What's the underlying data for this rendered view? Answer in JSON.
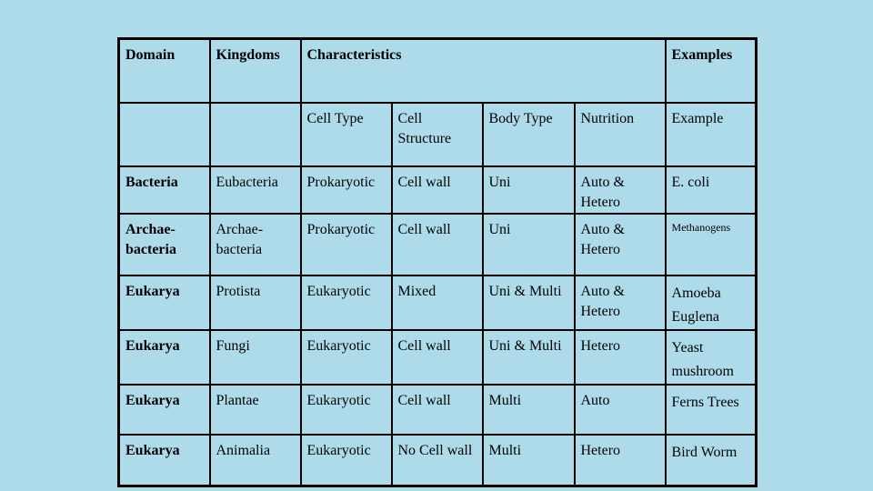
{
  "table": {
    "header1": {
      "domain": "Domain",
      "kingdoms": "Kingdoms",
      "characteristics": "Characteristics",
      "examples": "Examples"
    },
    "header2": {
      "cell_type": "Cell Type",
      "cell_structure": "Cell Structure",
      "body_type": "Body Type",
      "nutrition": "Nutrition",
      "example": "Example"
    },
    "rows": [
      {
        "domain": "Bacteria",
        "kingdom": "Eubacteria",
        "cell_type": "Prokaryotic",
        "cell_structure": "Cell wall",
        "body_type": "Uni",
        "nutrition": "Auto & Hetero",
        "example": "E. coli"
      },
      {
        "domain": "Archae-bacteria",
        "kingdom": "Archae-bacteria",
        "cell_type": "Prokaryotic",
        "cell_structure": "Cell wall",
        "body_type": "Uni",
        "nutrition": "Auto & Hetero",
        "example": "Methanogens"
      },
      {
        "domain": "Eukarya",
        "kingdom": "Protista",
        "cell_type": "Eukaryotic",
        "cell_structure": "Mixed",
        "body_type": "Uni & Multi",
        "nutrition": "Auto & Hetero",
        "example": "Amoeba Euglena"
      },
      {
        "domain": "Eukarya",
        "kingdom": "Fungi",
        "cell_type": "Eukaryotic",
        "cell_structure": "Cell wall",
        "body_type": "Uni & Multi",
        "nutrition": "Hetero",
        "example": "Yeast mushroom"
      },
      {
        "domain": "Eukarya",
        "kingdom": "Plantae",
        "cell_type": "Eukaryotic",
        "cell_structure": "Cell wall",
        "body_type": "Multi",
        "nutrition": "Auto",
        "example": "Ferns Trees"
      },
      {
        "domain": "Eukarya",
        "kingdom": "Animalia",
        "cell_type": "Eukaryotic",
        "cell_structure": "No Cell wall",
        "body_type": "Multi",
        "nutrition": "Hetero",
        "example": "Bird Worm"
      }
    ]
  }
}
